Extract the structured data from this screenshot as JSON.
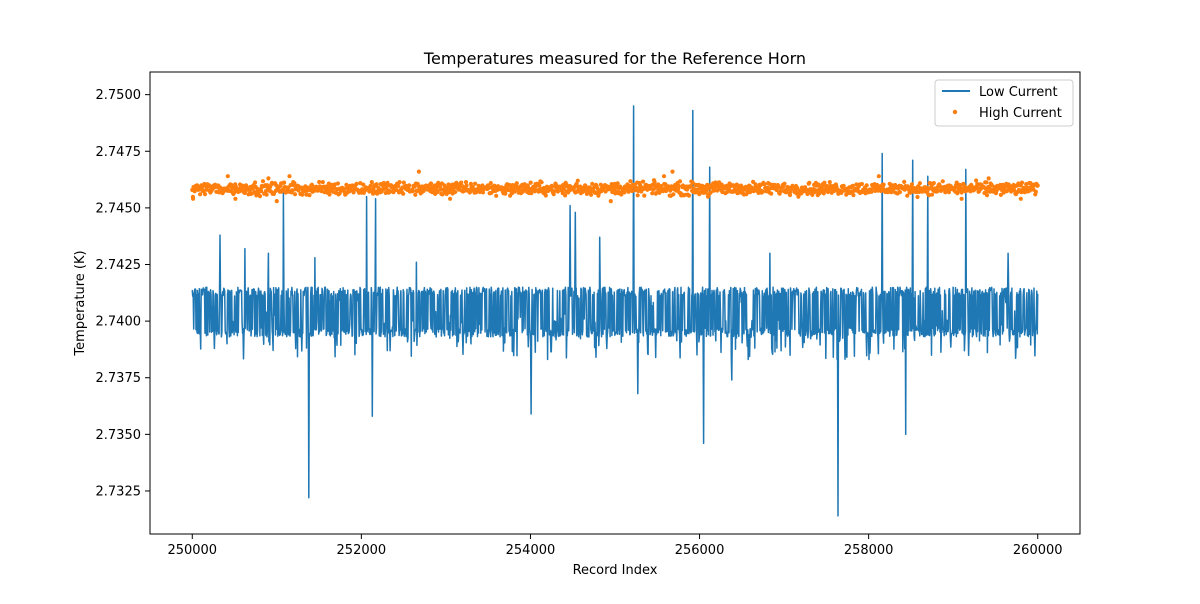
{
  "chart_data": {
    "type": "line",
    "title": "Temperatures measured for the Reference Horn",
    "xlabel": "Record Index",
    "ylabel": "Temperature (K)",
    "xlim": [
      249500,
      260500
    ],
    "ylim": [
      2.7306,
      2.751
    ],
    "xticks": [
      250000,
      252000,
      254000,
      256000,
      258000,
      260000
    ],
    "xtick_labels": [
      "250000",
      "252000",
      "254000",
      "256000",
      "258000",
      "260000"
    ],
    "yticks": [
      2.7325,
      2.735,
      2.7375,
      2.74,
      2.7425,
      2.745,
      2.7475,
      2.75
    ],
    "ytick_labels": [
      "2.7325",
      "2.7350",
      "2.7375",
      "2.7400",
      "2.7425",
      "2.7450",
      "2.7475",
      "2.7500"
    ],
    "grid": false,
    "legend_position": "top-right",
    "series": [
      {
        "name": "Low Current",
        "kind": "line",
        "color": "#1f77b4",
        "x_start": 250000,
        "x_end": 260000,
        "band_low": 2.7393,
        "band_high": 2.7415,
        "dip_low": 2.7383,
        "spikes_up": [
          [
            250330,
            2.7438
          ],
          [
            250620,
            2.7432
          ],
          [
            250900,
            2.743
          ],
          [
            251080,
            2.7457
          ],
          [
            251450,
            2.7428
          ],
          [
            252060,
            2.7455
          ],
          [
            252170,
            2.7454
          ],
          [
            252650,
            2.7426
          ],
          [
            254470,
            2.7451
          ],
          [
            254530,
            2.7448
          ],
          [
            254820,
            2.7437
          ],
          [
            255220,
            2.7495
          ],
          [
            255920,
            2.7493
          ],
          [
            256120,
            2.7468
          ],
          [
            256830,
            2.743
          ],
          [
            258160,
            2.7474
          ],
          [
            258520,
            2.7471
          ],
          [
            258700,
            2.7464
          ],
          [
            259150,
            2.7467
          ],
          [
            259650,
            2.743
          ]
        ],
        "spikes_down": [
          [
            251380,
            2.7322
          ],
          [
            252130,
            2.7358
          ],
          [
            254010,
            2.7359
          ],
          [
            255270,
            2.7368
          ],
          [
            256050,
            2.7346
          ],
          [
            257640,
            2.7314
          ],
          [
            258440,
            2.735
          ],
          [
            256380,
            2.7374
          ]
        ]
      },
      {
        "name": "High Current",
        "kind": "scatter",
        "color": "#ff7f0e",
        "x_start": 250000,
        "x_end": 260000,
        "center": 2.74585,
        "spread": 0.0003,
        "outliers": [
          [
            250010,
            2.7454
          ],
          [
            250420,
            2.7464
          ],
          [
            250510,
            2.7454
          ],
          [
            250900,
            2.7463
          ],
          [
            251000,
            2.7453
          ],
          [
            251150,
            2.7464
          ],
          [
            252680,
            2.7466
          ],
          [
            253050,
            2.7454
          ],
          [
            254560,
            2.7462
          ],
          [
            254950,
            2.7453
          ],
          [
            255580,
            2.7464
          ],
          [
            255680,
            2.7466
          ],
          [
            256100,
            2.7455
          ],
          [
            258120,
            2.7464
          ],
          [
            259100,
            2.7454
          ],
          [
            259420,
            2.7463
          ],
          [
            259800,
            2.7454
          ]
        ]
      }
    ]
  }
}
